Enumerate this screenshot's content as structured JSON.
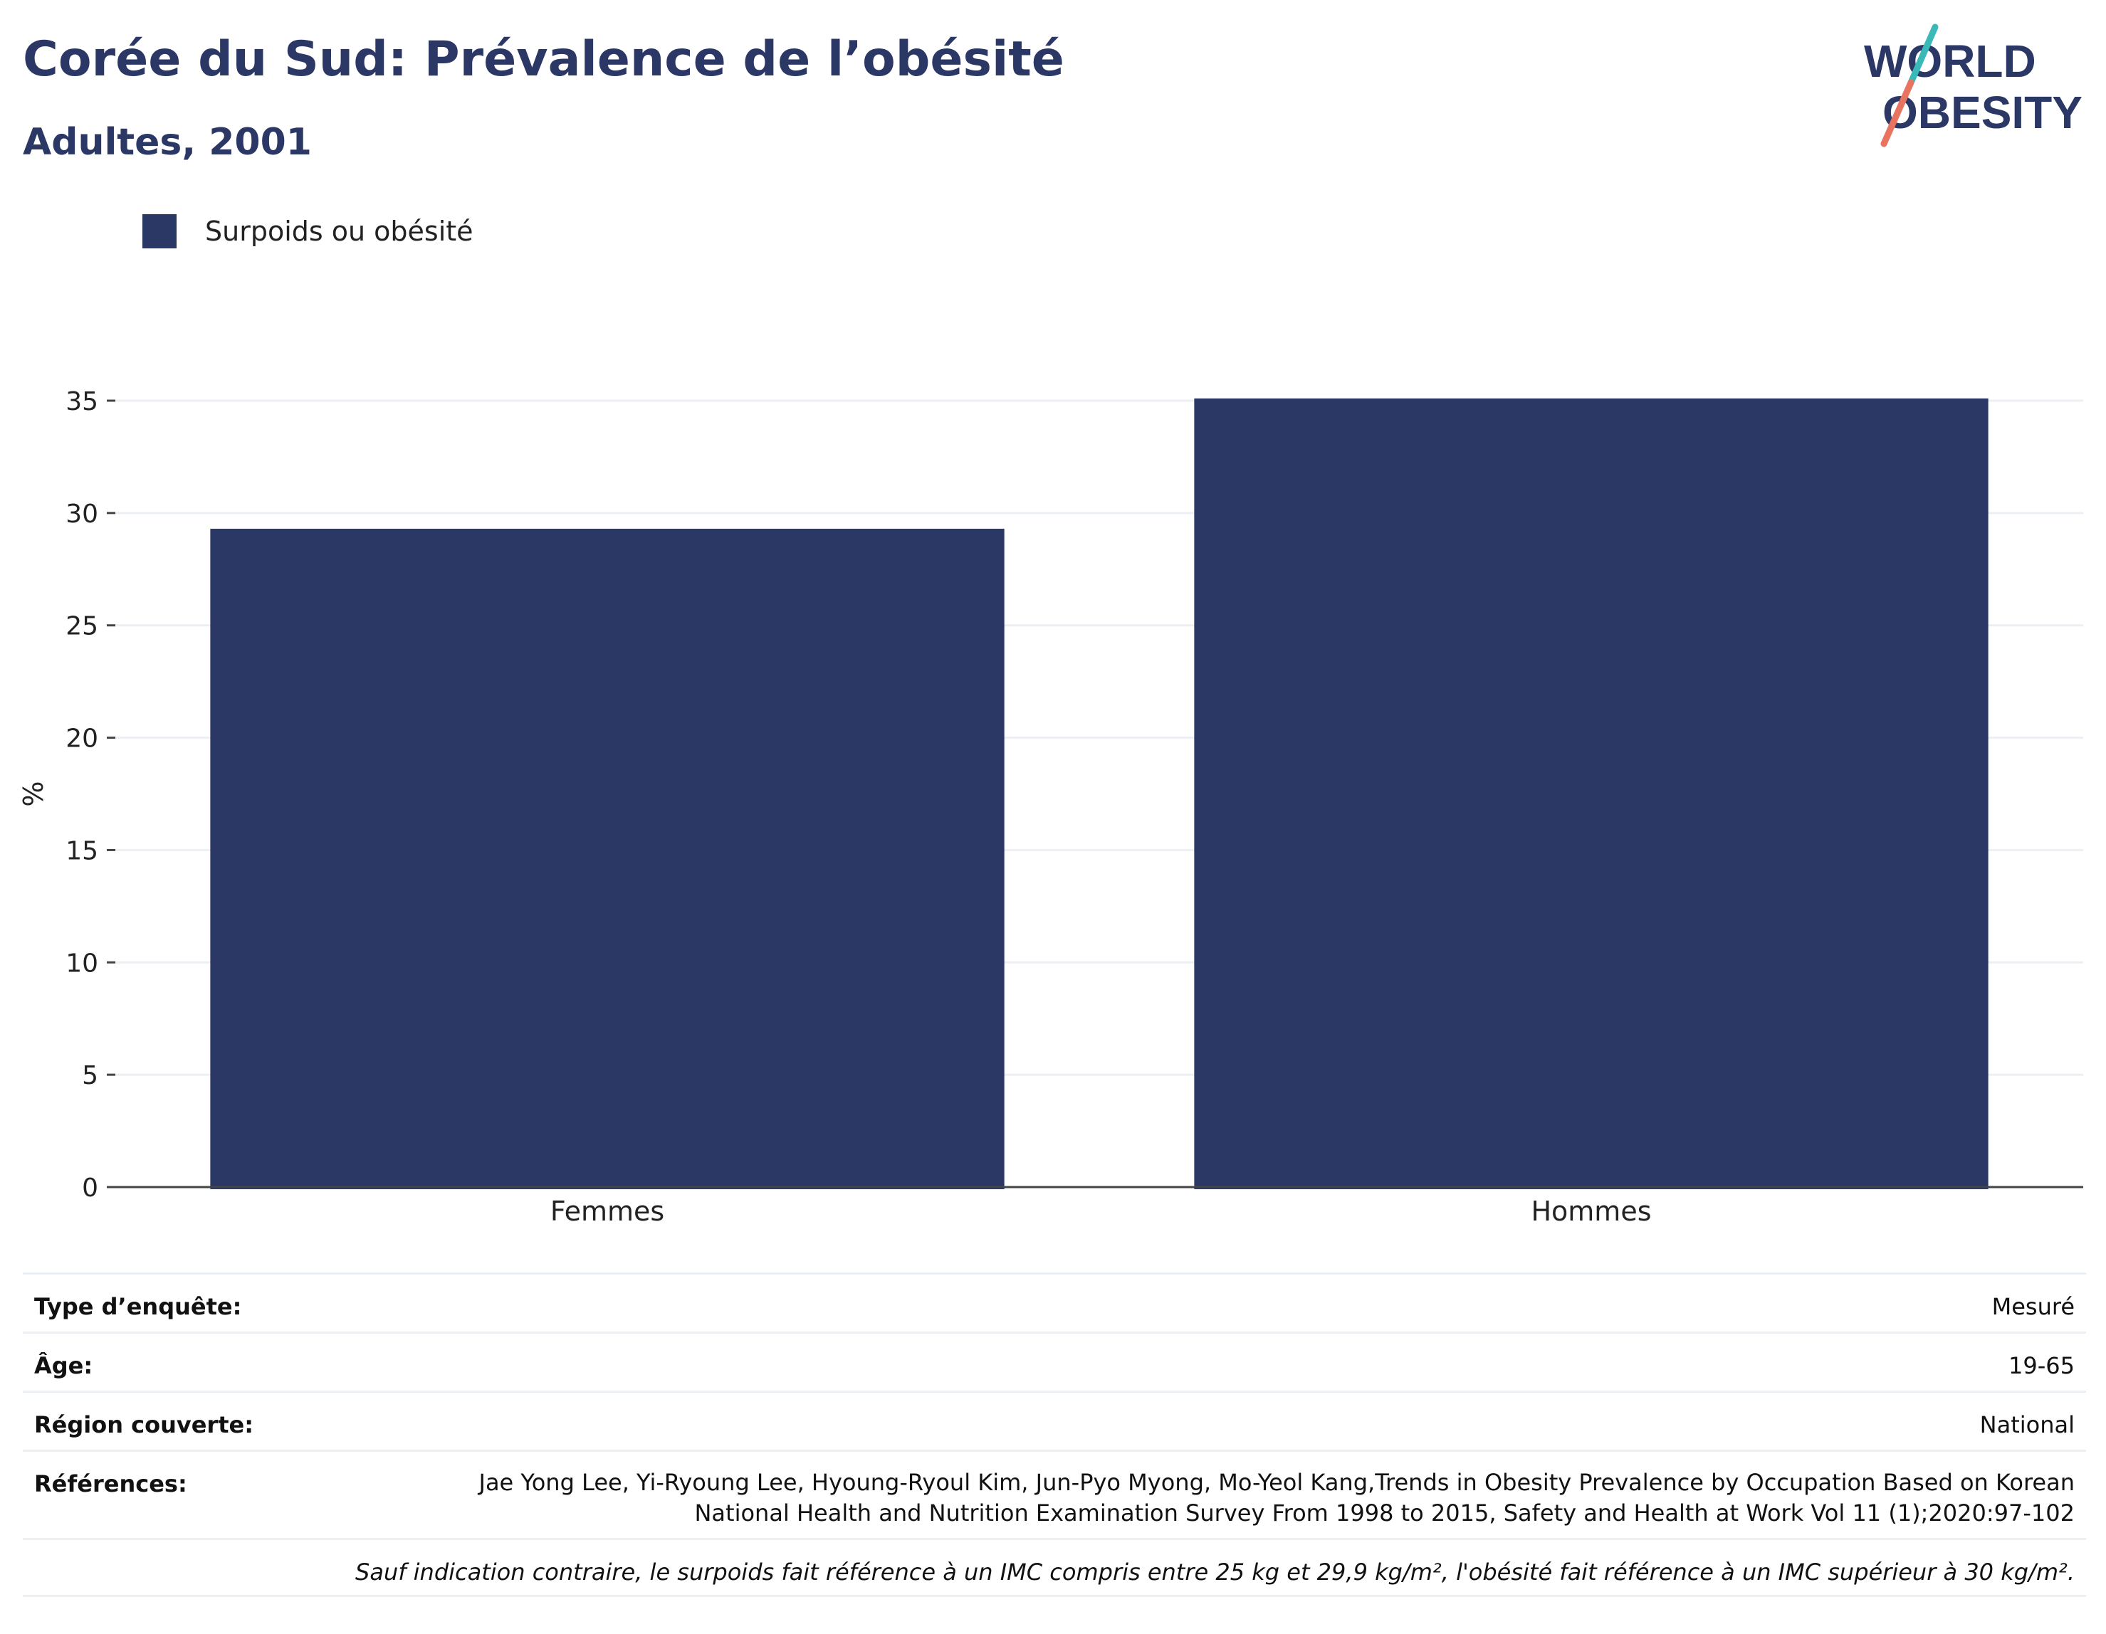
{
  "header": {
    "title": "Corée du Sud: Prévalence de l’obésité",
    "subtitle": "Adultes, 2001"
  },
  "logo": {
    "line1": "WORLD",
    "line2": "OBESITY"
  },
  "colors": {
    "bar": "#2b3865",
    "title": "#2b3865",
    "grid": "#eceff3",
    "logo_teal": "#3bb8b8",
    "logo_coral": "#e8735f"
  },
  "chart_data": {
    "type": "bar",
    "categories": [
      "Femmes",
      "Hommes"
    ],
    "series": [
      {
        "name": "Surpoids ou obésité",
        "values": [
          29.3,
          35.1
        ]
      }
    ],
    "ylabel": "%",
    "xlabel": "",
    "ylim": [
      0,
      35
    ],
    "yticks": [
      0,
      5,
      10,
      15,
      20,
      25,
      30,
      35
    ],
    "grid": true,
    "legend": "top-left"
  },
  "metadata": {
    "rows": [
      {
        "key": "Type d’enquête:",
        "value": "Mesuré"
      },
      {
        "key": "Âge:",
        "value": "19-65"
      },
      {
        "key": "Région couverte:",
        "value": "National"
      },
      {
        "key": "Références:",
        "value": "Jae Yong Lee, Yi-Ryoung Lee, Hyoung-Ryoul Kim, Jun-Pyo Myong, Mo-Yeol Kang,Trends in Obesity Prevalence by Occupation Based on Korean National Health and Nutrition Examination Survey From 1998 to 2015, Safety and Health at Work Vol 11 (1);2020:97-102"
      }
    ],
    "note": "Sauf indication contraire, le surpoids fait référence à un IMC compris entre 25 kg et 29,9 kg/m², l'obésité fait référence à un IMC supérieur à 30 kg/m²."
  }
}
